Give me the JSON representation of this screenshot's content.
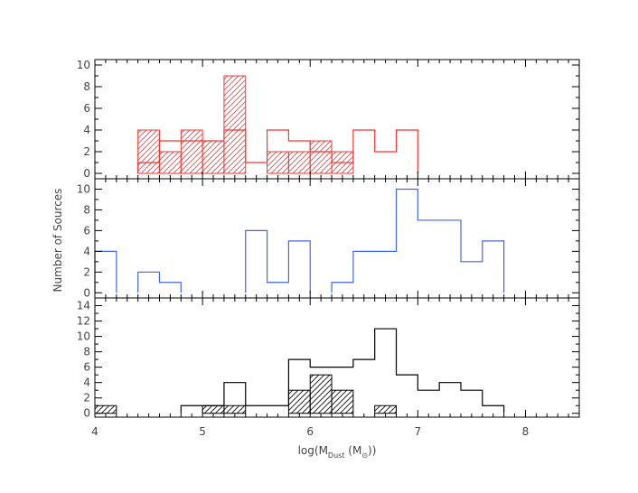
{
  "chart_data": {
    "type": "histogram",
    "xlabel": "log(M",
    "xlabel_sub": "Dust",
    "xlabel_unit_open": " (M",
    "xlabel_unit_symbol": "⊙",
    "xlabel_unit_close": "))",
    "ylabel": "Number of Sources",
    "xlim": [
      4,
      8.5
    ],
    "x_ticks": [
      "4",
      "5",
      "6",
      "7",
      "8"
    ],
    "bin_width": 0.2,
    "panels": [
      {
        "ylim": [
          -0.5,
          10.5
        ],
        "y_ticks": [
          "0",
          "2",
          "4",
          "6",
          "8",
          "10"
        ],
        "color": "#ff3333",
        "series": [
          {
            "style": "outline",
            "bins": [
              [
                4.4,
                1
              ],
              [
                4.6,
                3
              ],
              [
                4.8,
                3
              ],
              [
                5.0,
                3
              ],
              [
                5.2,
                4
              ],
              [
                5.4,
                1
              ],
              [
                5.6,
                4
              ],
              [
                5.8,
                3
              ],
              [
                6.0,
                2
              ],
              [
                6.2,
                1
              ],
              [
                6.4,
                4
              ],
              [
                6.6,
                2
              ],
              [
                6.8,
                4
              ]
            ]
          },
          {
            "style": "hatched",
            "bins": [
              [
                4.4,
                4
              ],
              [
                4.6,
                2
              ],
              [
                4.8,
                4
              ],
              [
                5.0,
                3
              ],
              [
                5.2,
                9
              ],
              [
                5.6,
                2
              ],
              [
                5.8,
                2
              ],
              [
                6.0,
                3
              ],
              [
                6.2,
                2
              ]
            ]
          }
        ]
      },
      {
        "ylim": [
          -0.5,
          11
        ],
        "y_ticks": [
          "0",
          "2",
          "4",
          "6",
          "8",
          "10"
        ],
        "color": "#4466dd",
        "series": [
          {
            "style": "outline",
            "bins": [
              [
                4.0,
                4
              ],
              [
                4.4,
                2
              ],
              [
                4.6,
                1
              ],
              [
                5.4,
                6
              ],
              [
                5.6,
                1
              ],
              [
                5.8,
                5
              ],
              [
                6.2,
                1
              ],
              [
                6.4,
                4
              ],
              [
                6.6,
                4
              ],
              [
                6.8,
                10
              ],
              [
                7.0,
                7
              ],
              [
                7.2,
                7
              ],
              [
                7.4,
                3
              ],
              [
                7.6,
                5
              ]
            ]
          }
        ]
      },
      {
        "ylim": [
          -0.5,
          15
        ],
        "y_ticks": [
          "0",
          "2",
          "4",
          "6",
          "8",
          "10",
          "12",
          "14"
        ],
        "color": "#000000",
        "series": [
          {
            "style": "outline",
            "bins": [
              [
                4.8,
                1
              ],
              [
                5.0,
                1
              ],
              [
                5.2,
                4
              ],
              [
                5.4,
                1
              ],
              [
                5.6,
                1
              ],
              [
                5.8,
                7
              ],
              [
                6.0,
                6
              ],
              [
                6.2,
                6
              ],
              [
                6.4,
                7
              ],
              [
                6.6,
                11
              ],
              [
                6.8,
                5
              ],
              [
                7.0,
                3
              ],
              [
                7.2,
                4
              ],
              [
                7.4,
                3
              ],
              [
                7.6,
                1
              ]
            ]
          },
          {
            "style": "hatched",
            "bins": [
              [
                4.0,
                1
              ],
              [
                5.0,
                1
              ],
              [
                5.2,
                1
              ],
              [
                5.8,
                3
              ],
              [
                6.0,
                5
              ],
              [
                6.2,
                3
              ],
              [
                6.6,
                1
              ]
            ]
          }
        ]
      }
    ]
  }
}
